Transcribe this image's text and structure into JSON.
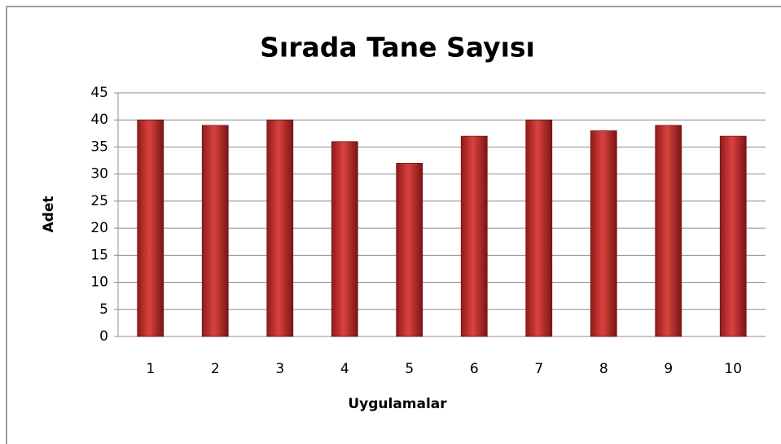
{
  "chart_data": {
    "type": "bar",
    "title": "Sırada Tane Sayısı",
    "x_label": "Uygulamalar",
    "y_label": "Adet",
    "categories": [
      "1",
      "2",
      "3",
      "4",
      "5",
      "6",
      "7",
      "8",
      "9",
      "10"
    ],
    "values": [
      40,
      39,
      40,
      36,
      32,
      37,
      40,
      38,
      39,
      37
    ],
    "color": "#d9423f",
    "ylim": [
      0,
      45
    ],
    "yticks": [
      0,
      5,
      10,
      15,
      20,
      25,
      30,
      35,
      40,
      45
    ],
    "grid": true
  }
}
